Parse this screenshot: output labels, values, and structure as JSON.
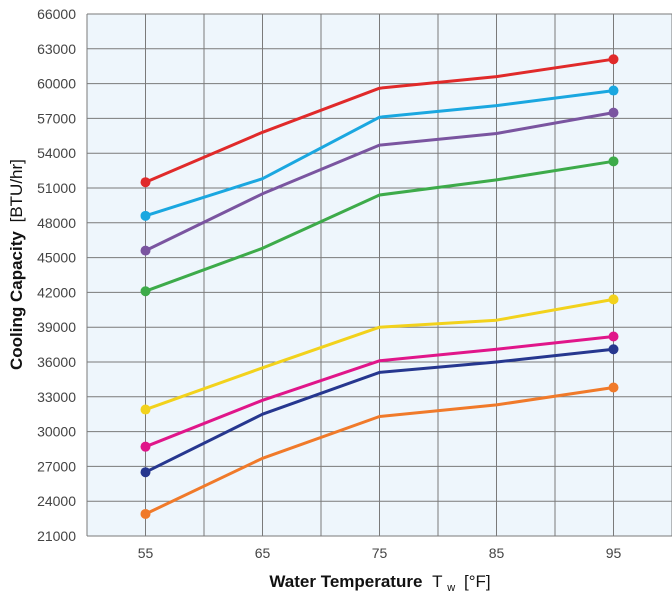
{
  "chart_data": {
    "type": "line",
    "xlabel": "Water Temperature",
    "xlabel_symbol": "T",
    "xlabel_subscript": "w",
    "xlabel_unit": "[°F]",
    "ylabel": "Cooling Capacity",
    "ylabel_unit": "[BTU/hr]",
    "x": [
      55,
      65,
      75,
      85,
      95
    ],
    "x_ticks": [
      "55",
      "65",
      "75",
      "85",
      "95"
    ],
    "y_ticks": [
      "21000",
      "24000",
      "27000",
      "30000",
      "33000",
      "36000",
      "39000",
      "42000",
      "45000",
      "48000",
      "51000",
      "54000",
      "57000",
      "60000",
      "63000",
      "66000"
    ],
    "xlim": [
      50,
      100
    ],
    "ylim": [
      21000,
      66000
    ],
    "grid": true,
    "background": "#eef6fc",
    "series": [
      {
        "color": "#e02a2a",
        "values": [
          51500,
          55800,
          59600,
          60600,
          62100
        ]
      },
      {
        "color": "#1aa7e0",
        "values": [
          48600,
          51800,
          57100,
          58100,
          59400
        ]
      },
      {
        "color": "#7a55a0",
        "values": [
          45600,
          50500,
          54700,
          55700,
          57500
        ]
      },
      {
        "color": "#3dab4a",
        "values": [
          42100,
          45800,
          50400,
          51700,
          53300
        ]
      },
      {
        "color": "#f2d21c",
        "values": [
          31900,
          35500,
          39000,
          39600,
          41400
        ]
      },
      {
        "color": "#e0168a",
        "values": [
          28700,
          32700,
          36100,
          37100,
          38200
        ]
      },
      {
        "color": "#26378f",
        "values": [
          26500,
          31500,
          35100,
          36000,
          37100
        ]
      },
      {
        "color": "#f07a2a",
        "values": [
          22900,
          27700,
          31300,
          32300,
          33800
        ]
      }
    ]
  }
}
